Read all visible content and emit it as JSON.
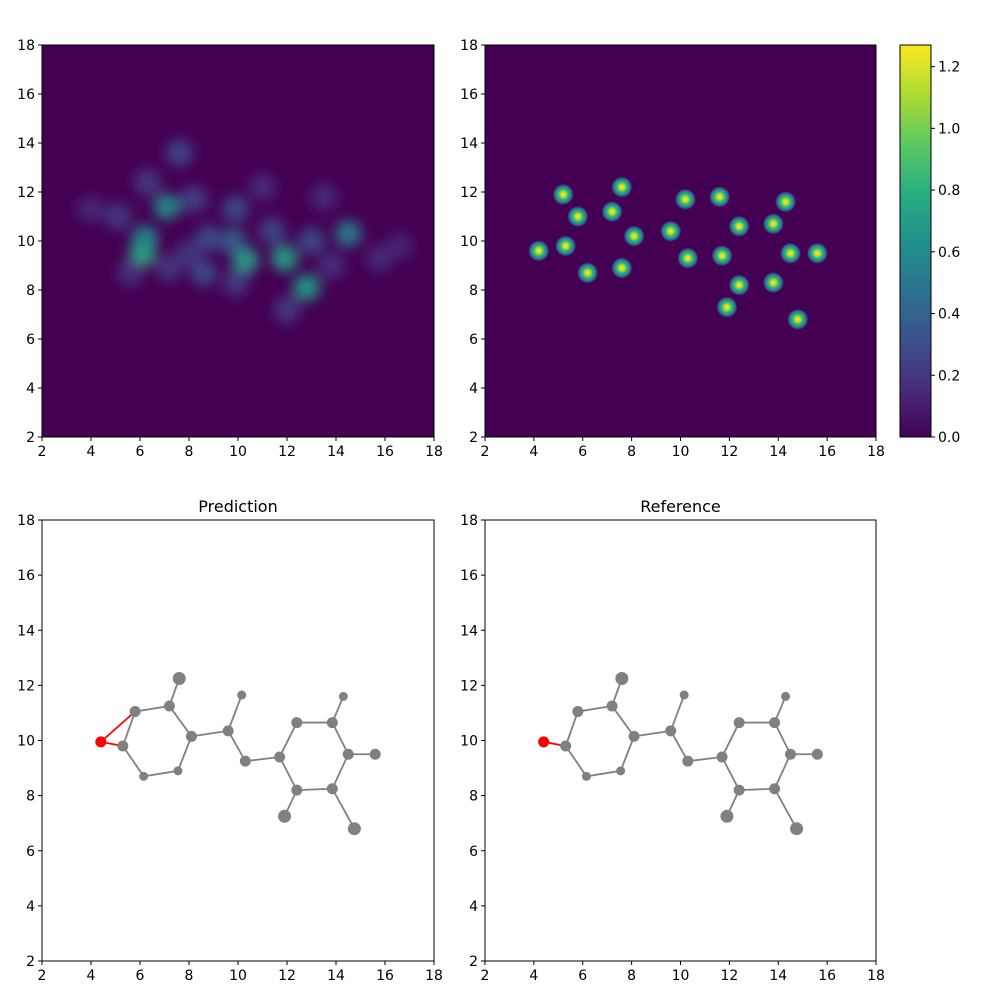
{
  "chart_data": [
    {
      "type": "heatmap",
      "panel": "top-left",
      "title": "",
      "xlim": [
        2,
        18
      ],
      "ylim": [
        2,
        18
      ],
      "xticks": [
        2,
        4,
        6,
        8,
        10,
        12,
        14,
        16,
        18
      ],
      "yticks": [
        2,
        4,
        6,
        8,
        10,
        12,
        14,
        16,
        18
      ],
      "colormap": "viridis",
      "vmin": 0,
      "vmax": 1.27,
      "blobs": [
        {
          "x": 6.1,
          "y": 9.5,
          "v": 0.78
        },
        {
          "x": 6.2,
          "y": 10.1,
          "v": 0.6
        },
        {
          "x": 7.1,
          "y": 11.4,
          "v": 0.62
        },
        {
          "x": 10.3,
          "y": 9.2,
          "v": 0.72
        },
        {
          "x": 11.9,
          "y": 9.3,
          "v": 0.72
        },
        {
          "x": 12.8,
          "y": 8.1,
          "v": 0.7
        },
        {
          "x": 14.5,
          "y": 10.3,
          "v": 0.55
        },
        {
          "x": 9.8,
          "y": 10.0,
          "v": 0.38
        },
        {
          "x": 9.9,
          "y": 11.3,
          "v": 0.3
        },
        {
          "x": 8.6,
          "y": 8.7,
          "v": 0.3
        },
        {
          "x": 8.8,
          "y": 10.1,
          "v": 0.3
        },
        {
          "x": 7.6,
          "y": 13.6,
          "v": 0.28
        },
        {
          "x": 8.2,
          "y": 11.7,
          "v": 0.25
        },
        {
          "x": 11.4,
          "y": 10.4,
          "v": 0.28
        },
        {
          "x": 13.0,
          "y": 10.0,
          "v": 0.3
        },
        {
          "x": 9.9,
          "y": 8.3,
          "v": 0.22
        },
        {
          "x": 12.0,
          "y": 7.2,
          "v": 0.22
        },
        {
          "x": 5.1,
          "y": 11.0,
          "v": 0.22
        },
        {
          "x": 4.0,
          "y": 11.3,
          "v": 0.14
        },
        {
          "x": 6.3,
          "y": 12.4,
          "v": 0.22
        },
        {
          "x": 5.6,
          "y": 8.7,
          "v": 0.18
        },
        {
          "x": 15.8,
          "y": 9.3,
          "v": 0.16
        },
        {
          "x": 13.5,
          "y": 11.8,
          "v": 0.16
        },
        {
          "x": 11.0,
          "y": 12.2,
          "v": 0.16
        },
        {
          "x": 8.0,
          "y": 9.5,
          "v": 0.2
        },
        {
          "x": 7.2,
          "y": 8.9,
          "v": 0.2
        },
        {
          "x": 13.8,
          "y": 9.0,
          "v": 0.18
        },
        {
          "x": 16.6,
          "y": 9.8,
          "v": 0.12
        }
      ]
    },
    {
      "type": "heatmap",
      "panel": "top-right",
      "title": "",
      "xlim": [
        2,
        18
      ],
      "ylim": [
        2,
        18
      ],
      "xticks": [
        2,
        4,
        6,
        8,
        10,
        12,
        14,
        16,
        18
      ],
      "yticks": [
        2,
        4,
        6,
        8,
        10,
        12,
        14,
        16,
        18
      ],
      "colormap": "viridis",
      "vmin": 0,
      "vmax": 1.27,
      "colorbar_ticks": [
        "0.0",
        "0.2",
        "0.4",
        "0.6",
        "0.8",
        "1.0",
        "1.2"
      ],
      "colorbar_tick_values": [
        0,
        0.2,
        0.4,
        0.6,
        0.8,
        1.0,
        1.2
      ],
      "blobs": [
        {
          "x": 4.2,
          "y": 9.6,
          "v": 1.27
        },
        {
          "x": 5.2,
          "y": 11.9,
          "v": 1.27
        },
        {
          "x": 5.3,
          "y": 9.8,
          "v": 1.27
        },
        {
          "x": 5.8,
          "y": 11.0,
          "v": 1.27
        },
        {
          "x": 6.2,
          "y": 8.7,
          "v": 1.27
        },
        {
          "x": 7.2,
          "y": 11.2,
          "v": 1.27
        },
        {
          "x": 7.6,
          "y": 12.2,
          "v": 1.27
        },
        {
          "x": 7.6,
          "y": 8.9,
          "v": 1.27
        },
        {
          "x": 8.1,
          "y": 10.2,
          "v": 1.27
        },
        {
          "x": 9.6,
          "y": 10.4,
          "v": 1.27
        },
        {
          "x": 10.2,
          "y": 11.7,
          "v": 1.27
        },
        {
          "x": 10.3,
          "y": 9.3,
          "v": 1.27
        },
        {
          "x": 11.6,
          "y": 11.8,
          "v": 1.27
        },
        {
          "x": 11.7,
          "y": 9.4,
          "v": 1.27
        },
        {
          "x": 11.9,
          "y": 7.3,
          "v": 1.27
        },
        {
          "x": 12.4,
          "y": 10.6,
          "v": 1.27
        },
        {
          "x": 12.4,
          "y": 8.2,
          "v": 1.27
        },
        {
          "x": 13.8,
          "y": 10.7,
          "v": 1.27
        },
        {
          "x": 13.8,
          "y": 8.3,
          "v": 1.27
        },
        {
          "x": 14.3,
          "y": 11.6,
          "v": 1.27
        },
        {
          "x": 14.5,
          "y": 9.5,
          "v": 1.27
        },
        {
          "x": 14.8,
          "y": 6.8,
          "v": 1.27
        },
        {
          "x": 15.6,
          "y": 9.5,
          "v": 1.27
        }
      ]
    },
    {
      "type": "scatter",
      "panel": "bottom-left",
      "title": "Prediction",
      "xlim": [
        2,
        18
      ],
      "ylim": [
        2,
        18
      ],
      "xticks": [
        2,
        4,
        6,
        8,
        10,
        12,
        14,
        16,
        18
      ],
      "yticks": [
        2,
        4,
        6,
        8,
        10,
        12,
        14,
        16,
        18
      ],
      "atom_color": "#808080",
      "highlight_color": "#ff0000",
      "atoms": [
        {
          "x": 4.4,
          "y": 9.95,
          "s": "m",
          "hl": true
        },
        {
          "x": 5.3,
          "y": 9.8,
          "s": "m",
          "hl": false
        },
        {
          "x": 5.8,
          "y": 11.05,
          "s": "m",
          "hl": false
        },
        {
          "x": 6.15,
          "y": 8.7,
          "s": "s",
          "hl": false
        },
        {
          "x": 7.2,
          "y": 11.25,
          "s": "m",
          "hl": false
        },
        {
          "x": 7.6,
          "y": 12.25,
          "s": "l",
          "hl": false
        },
        {
          "x": 7.55,
          "y": 8.9,
          "s": "s",
          "hl": false
        },
        {
          "x": 8.1,
          "y": 10.15,
          "s": "m",
          "hl": false
        },
        {
          "x": 9.6,
          "y": 10.35,
          "s": "m",
          "hl": false
        },
        {
          "x": 10.15,
          "y": 11.65,
          "s": "s",
          "hl": false
        },
        {
          "x": 10.3,
          "y": 9.25,
          "s": "m",
          "hl": false
        },
        {
          "x": 11.7,
          "y": 9.4,
          "s": "m",
          "hl": false
        },
        {
          "x": 11.9,
          "y": 7.25,
          "s": "l",
          "hl": false
        },
        {
          "x": 12.4,
          "y": 10.65,
          "s": "m",
          "hl": false
        },
        {
          "x": 12.4,
          "y": 8.2,
          "s": "m",
          "hl": false
        },
        {
          "x": 13.85,
          "y": 10.65,
          "s": "m",
          "hl": false
        },
        {
          "x": 13.85,
          "y": 8.25,
          "s": "m",
          "hl": false
        },
        {
          "x": 14.3,
          "y": 11.6,
          "s": "s",
          "hl": false
        },
        {
          "x": 14.5,
          "y": 9.5,
          "s": "m",
          "hl": false
        },
        {
          "x": 14.75,
          "y": 6.8,
          "s": "l",
          "hl": false
        },
        {
          "x": 15.6,
          "y": 9.5,
          "s": "m",
          "hl": false
        }
      ],
      "bonds": [
        {
          "a": 1,
          "b": 3,
          "hl": false
        },
        {
          "a": 3,
          "b": 6,
          "hl": false
        },
        {
          "a": 6,
          "b": 7,
          "hl": false
        },
        {
          "a": 7,
          "b": 4,
          "hl": false
        },
        {
          "a": 4,
          "b": 2,
          "hl": false
        },
        {
          "a": 2,
          "b": 1,
          "hl": false
        },
        {
          "a": 4,
          "b": 5,
          "hl": false
        },
        {
          "a": 7,
          "b": 8,
          "hl": false
        },
        {
          "a": 8,
          "b": 9,
          "hl": false
        },
        {
          "a": 8,
          "b": 10,
          "hl": false
        },
        {
          "a": 10,
          "b": 11,
          "hl": false
        },
        {
          "a": 11,
          "b": 13,
          "hl": false
        },
        {
          "a": 13,
          "b": 15,
          "hl": false
        },
        {
          "a": 15,
          "b": 18,
          "hl": false
        },
        {
          "a": 18,
          "b": 16,
          "hl": false
        },
        {
          "a": 16,
          "b": 14,
          "hl": false
        },
        {
          "a": 14,
          "b": 11,
          "hl": false
        },
        {
          "a": 15,
          "b": 17,
          "hl": false
        },
        {
          "a": 18,
          "b": 20,
          "hl": false
        },
        {
          "a": 16,
          "b": 19,
          "hl": false
        },
        {
          "a": 14,
          "b": 12,
          "hl": false
        },
        {
          "a": 0,
          "b": 1,
          "hl": true
        },
        {
          "a": 0,
          "b": 2,
          "hl": true
        }
      ]
    },
    {
      "type": "scatter",
      "panel": "bottom-right",
      "title": "Reference",
      "xlim": [
        2,
        18
      ],
      "ylim": [
        2,
        18
      ],
      "xticks": [
        2,
        4,
        6,
        8,
        10,
        12,
        14,
        16,
        18
      ],
      "yticks": [
        2,
        4,
        6,
        8,
        10,
        12,
        14,
        16,
        18
      ],
      "atom_color": "#808080",
      "highlight_color": "#ff0000",
      "atoms": [
        {
          "x": 4.4,
          "y": 9.95,
          "s": "m",
          "hl": true
        },
        {
          "x": 5.3,
          "y": 9.8,
          "s": "m",
          "hl": false
        },
        {
          "x": 5.8,
          "y": 11.05,
          "s": "m",
          "hl": false
        },
        {
          "x": 6.15,
          "y": 8.7,
          "s": "s",
          "hl": false
        },
        {
          "x": 7.2,
          "y": 11.25,
          "s": "m",
          "hl": false
        },
        {
          "x": 7.6,
          "y": 12.25,
          "s": "l",
          "hl": false
        },
        {
          "x": 7.55,
          "y": 8.9,
          "s": "s",
          "hl": false
        },
        {
          "x": 8.1,
          "y": 10.15,
          "s": "m",
          "hl": false
        },
        {
          "x": 9.6,
          "y": 10.35,
          "s": "m",
          "hl": false
        },
        {
          "x": 10.15,
          "y": 11.65,
          "s": "s",
          "hl": false
        },
        {
          "x": 10.3,
          "y": 9.25,
          "s": "m",
          "hl": false
        },
        {
          "x": 11.7,
          "y": 9.4,
          "s": "m",
          "hl": false
        },
        {
          "x": 11.9,
          "y": 7.25,
          "s": "l",
          "hl": false
        },
        {
          "x": 12.4,
          "y": 10.65,
          "s": "m",
          "hl": false
        },
        {
          "x": 12.4,
          "y": 8.2,
          "s": "m",
          "hl": false
        },
        {
          "x": 13.85,
          "y": 10.65,
          "s": "m",
          "hl": false
        },
        {
          "x": 13.85,
          "y": 8.25,
          "s": "m",
          "hl": false
        },
        {
          "x": 14.3,
          "y": 11.6,
          "s": "s",
          "hl": false
        },
        {
          "x": 14.5,
          "y": 9.5,
          "s": "m",
          "hl": false
        },
        {
          "x": 14.75,
          "y": 6.8,
          "s": "l",
          "hl": false
        },
        {
          "x": 15.6,
          "y": 9.5,
          "s": "m",
          "hl": false
        }
      ],
      "bonds": [
        {
          "a": 1,
          "b": 3,
          "hl": false
        },
        {
          "a": 3,
          "b": 6,
          "hl": false
        },
        {
          "a": 6,
          "b": 7,
          "hl": false
        },
        {
          "a": 7,
          "b": 4,
          "hl": false
        },
        {
          "a": 4,
          "b": 2,
          "hl": false
        },
        {
          "a": 2,
          "b": 1,
          "hl": false
        },
        {
          "a": 4,
          "b": 5,
          "hl": false
        },
        {
          "a": 7,
          "b": 8,
          "hl": false
        },
        {
          "a": 8,
          "b": 9,
          "hl": false
        },
        {
          "a": 8,
          "b": 10,
          "hl": false
        },
        {
          "a": 10,
          "b": 11,
          "hl": false
        },
        {
          "a": 11,
          "b": 13,
          "hl": false
        },
        {
          "a": 13,
          "b": 15,
          "hl": false
        },
        {
          "a": 15,
          "b": 18,
          "hl": false
        },
        {
          "a": 18,
          "b": 16,
          "hl": false
        },
        {
          "a": 16,
          "b": 14,
          "hl": false
        },
        {
          "a": 14,
          "b": 11,
          "hl": false
        },
        {
          "a": 15,
          "b": 17,
          "hl": false
        },
        {
          "a": 18,
          "b": 20,
          "hl": false
        },
        {
          "a": 16,
          "b": 19,
          "hl": false
        },
        {
          "a": 14,
          "b": 12,
          "hl": false
        },
        {
          "a": 0,
          "b": 1,
          "hl": true
        }
      ]
    }
  ]
}
